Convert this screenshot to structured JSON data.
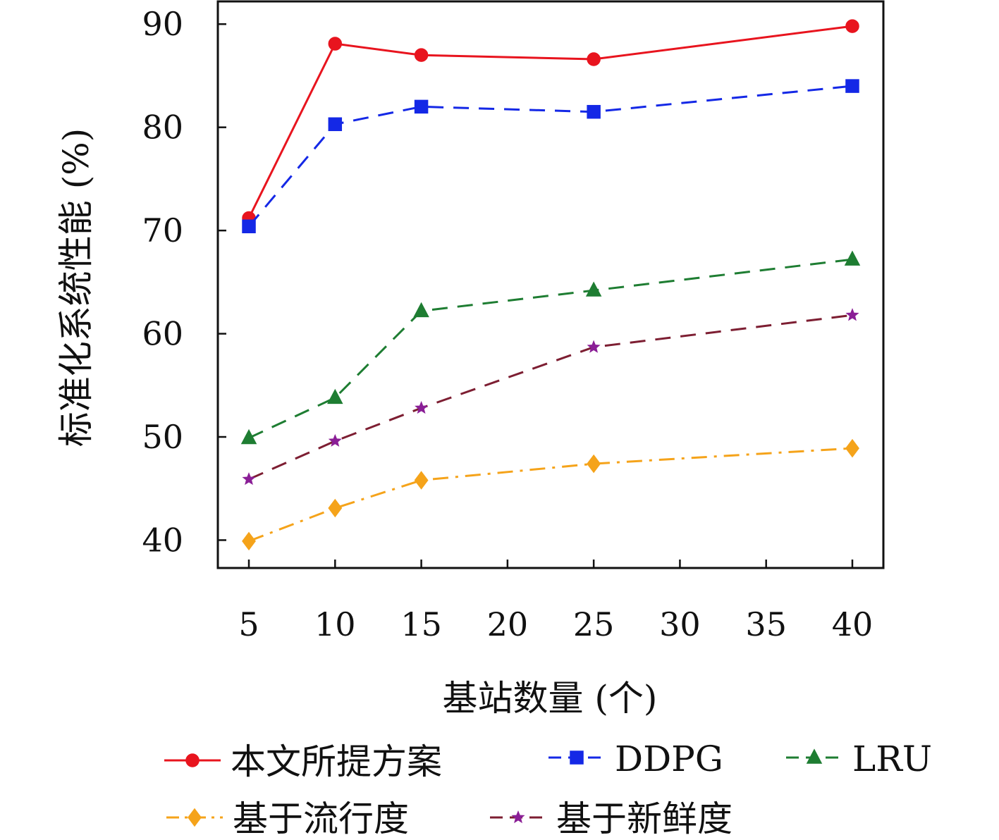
{
  "chart_data": {
    "type": "line",
    "title": "",
    "xlabel": "基站数量 (个)",
    "ylabel": "标准化系统性能 (%)",
    "x_ticks": [
      5,
      10,
      15,
      20,
      25,
      30,
      35,
      40
    ],
    "y_ticks": [
      40,
      50,
      60,
      70,
      80,
      90
    ],
    "xlim": [
      3.2,
      41.8
    ],
    "ylim": [
      37.3,
      92.2
    ],
    "grid": false,
    "legend_position": "bottom",
    "x": [
      5,
      10,
      15,
      25,
      40
    ],
    "series": [
      {
        "name": "本文所提方案",
        "color": "#e8141e",
        "dash": "",
        "marker": "circle",
        "values": [
          71.2,
          88.1,
          87.0,
          86.6,
          89.8
        ]
      },
      {
        "name": "DDPG",
        "color": "#1428e6",
        "dash": "22,14",
        "marker": "square",
        "values": [
          70.4,
          80.3,
          82.0,
          81.5,
          84.0
        ]
      },
      {
        "name": "LRU",
        "color": "#1e7d32",
        "dash": "22,14",
        "marker": "triangle",
        "values": [
          49.9,
          53.8,
          62.2,
          64.2,
          67.2
        ]
      },
      {
        "name": "基于流行度",
        "color": "#f5a31a",
        "dash": "22,10,4,10",
        "marker": "diamond",
        "values": [
          39.9,
          43.1,
          45.8,
          47.4,
          48.9
        ]
      },
      {
        "name": "基于新鲜度",
        "color": "#7d1e32",
        "dash": "22,14",
        "marker": "star",
        "markerColor": "#8a1e96",
        "values": [
          45.9,
          49.6,
          52.8,
          58.7,
          61.8
        ]
      }
    ]
  }
}
